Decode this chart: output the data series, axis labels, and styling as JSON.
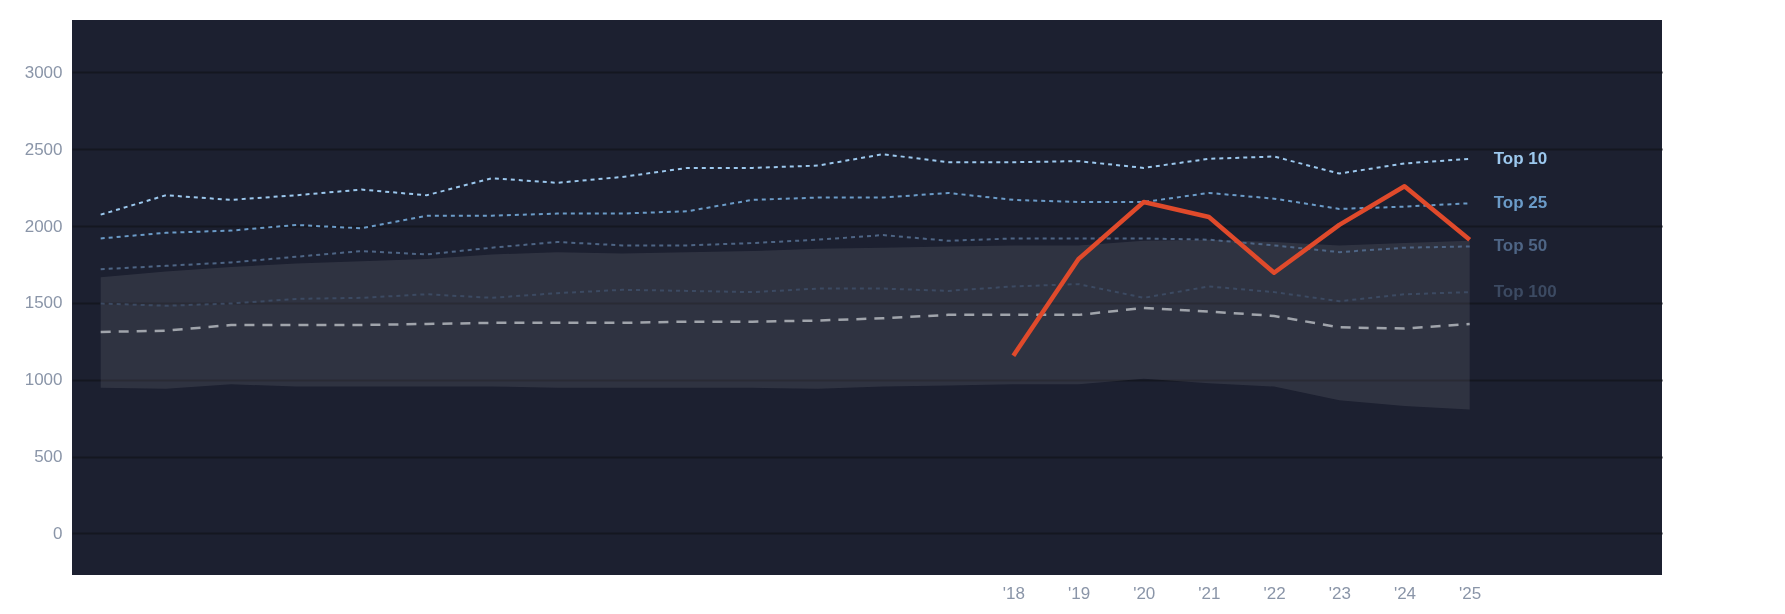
{
  "chart_data": {
    "type": "line",
    "categories": [
      null,
      null,
      null,
      null,
      null,
      null,
      null,
      null,
      null,
      null,
      null,
      null,
      null,
      null,
      "'18",
      "'19",
      "'20",
      "'21",
      "'22",
      "'23",
      "'24",
      "'25"
    ],
    "series": [
      {
        "name": "Top 10",
        "color": "#9cc8ee",
        "line_style": "dotted",
        "values": [
          2074,
          2200,
          2170,
          2200,
          2237,
          2200,
          2311,
          2281,
          2319,
          2378,
          2378,
          2393,
          2467,
          2415,
          2415,
          2422,
          2378,
          2437,
          2452,
          2341,
          2407,
          2437
        ]
      },
      {
        "name": "Top 25",
        "color": "#6b9bc8",
        "line_style": "dotted",
        "values": [
          1919,
          1956,
          1970,
          2007,
          1985,
          2067,
          2067,
          2081,
          2081,
          2096,
          2170,
          2185,
          2185,
          2215,
          2170,
          2156,
          2156,
          2215,
          2178,
          2111,
          2126,
          2148
        ]
      },
      {
        "name": "Top 50",
        "color": "#4e6585",
        "line_style": "dotted",
        "values": [
          1719,
          1741,
          1763,
          1800,
          1837,
          1815,
          1859,
          1896,
          1874,
          1874,
          1889,
          1911,
          1941,
          1904,
          1919,
          1919,
          1919,
          1911,
          1874,
          1830,
          1859,
          1867
        ]
      },
      {
        "name": "Top 100",
        "color": "#3c4a62",
        "line_style": "dotted",
        "values": [
          1496,
          1481,
          1496,
          1526,
          1533,
          1556,
          1533,
          1563,
          1585,
          1578,
          1570,
          1593,
          1593,
          1578,
          1607,
          1622,
          1533,
          1607,
          1570,
          1511,
          1556,
          1570
        ]
      },
      {
        "color": "#a0a4ab",
        "line_style": "dashed",
        "values": [
          1311,
          1319,
          1356,
          1356,
          1356,
          1363,
          1370,
          1370,
          1370,
          1378,
          1378,
          1385,
          1400,
          1422,
          1422,
          1422,
          1467,
          1444,
          1415,
          1341,
          1333,
          1363
        ],
        "lower": [
          948,
          941,
          970,
          956,
          956,
          956,
          956,
          948,
          948,
          948,
          948,
          941,
          956,
          963,
          970,
          970,
          1007,
          978,
          956,
          867,
          830,
          807
        ],
        "upper": [
          1667,
          1704,
          1733,
          1756,
          1770,
          1785,
          1815,
          1830,
          1822,
          1830,
          1837,
          1852,
          1859,
          1867,
          1874,
          1874,
          1904,
          1911,
          1896,
          1874,
          1889,
          1904
        ]
      },
      {
        "color": "#e04a2b",
        "line_style": "solid",
        "values": [
          null,
          null,
          null,
          null,
          null,
          null,
          null,
          null,
          null,
          null,
          null,
          null,
          null,
          null,
          1156,
          1785,
          2156,
          2059,
          1696,
          2007,
          2259,
          1911
        ]
      }
    ],
    "ylim": [
      -270,
      3340
    ],
    "yticks": [
      0,
      500,
      1000,
      1500,
      2000,
      2500,
      3000
    ],
    "grid": "y",
    "legend": false
  }
}
